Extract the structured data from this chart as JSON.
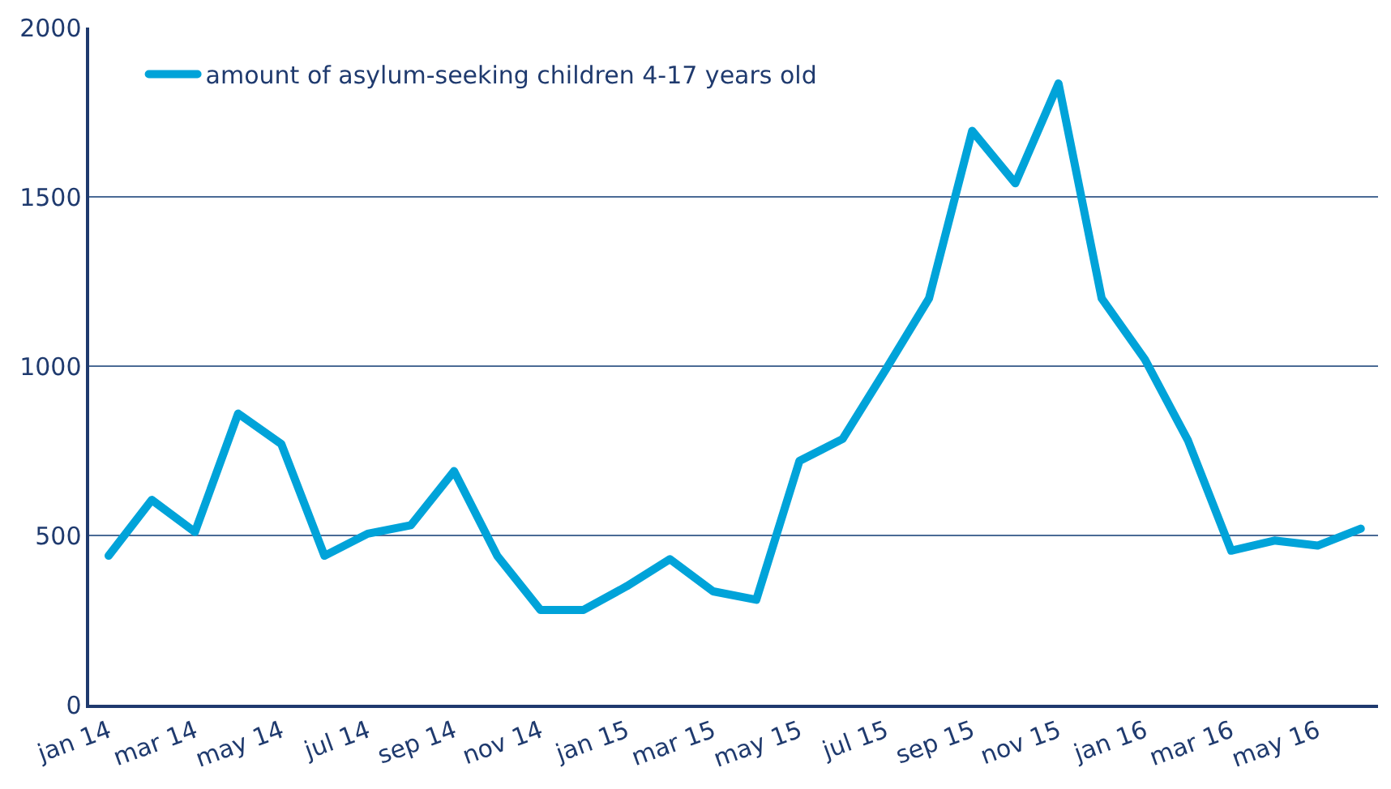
{
  "chart_data": {
    "type": "line",
    "categories": [
      "jan 14",
      null,
      "mar 14",
      null,
      "may 14",
      null,
      "jul 14",
      null,
      "sep 14",
      null,
      "nov 14",
      null,
      "jan 15",
      null,
      "mar 15",
      null,
      "may 15",
      null,
      "jul 15",
      null,
      "sep 15",
      null,
      "nov 15",
      null,
      "jan 16",
      null,
      "mar 16",
      null,
      "may 16",
      null
    ],
    "series": [
      {
        "name": "amount of asylum-seeking children 4-17 years old",
        "color": "#00a3d9",
        "values": [
          440,
          605,
          510,
          860,
          770,
          440,
          505,
          530,
          690,
          440,
          280,
          280,
          350,
          430,
          335,
          310,
          720,
          785,
          990,
          1200,
          1695,
          1540,
          1835,
          1200,
          1020,
          780,
          455,
          485,
          470,
          520
        ]
      }
    ],
    "ylim": [
      0,
      2000
    ],
    "yticks": [
      0,
      500,
      1000,
      1500,
      2000
    ],
    "grid": "y",
    "legend": "top left",
    "marker": "none",
    "line_style": "solid"
  }
}
